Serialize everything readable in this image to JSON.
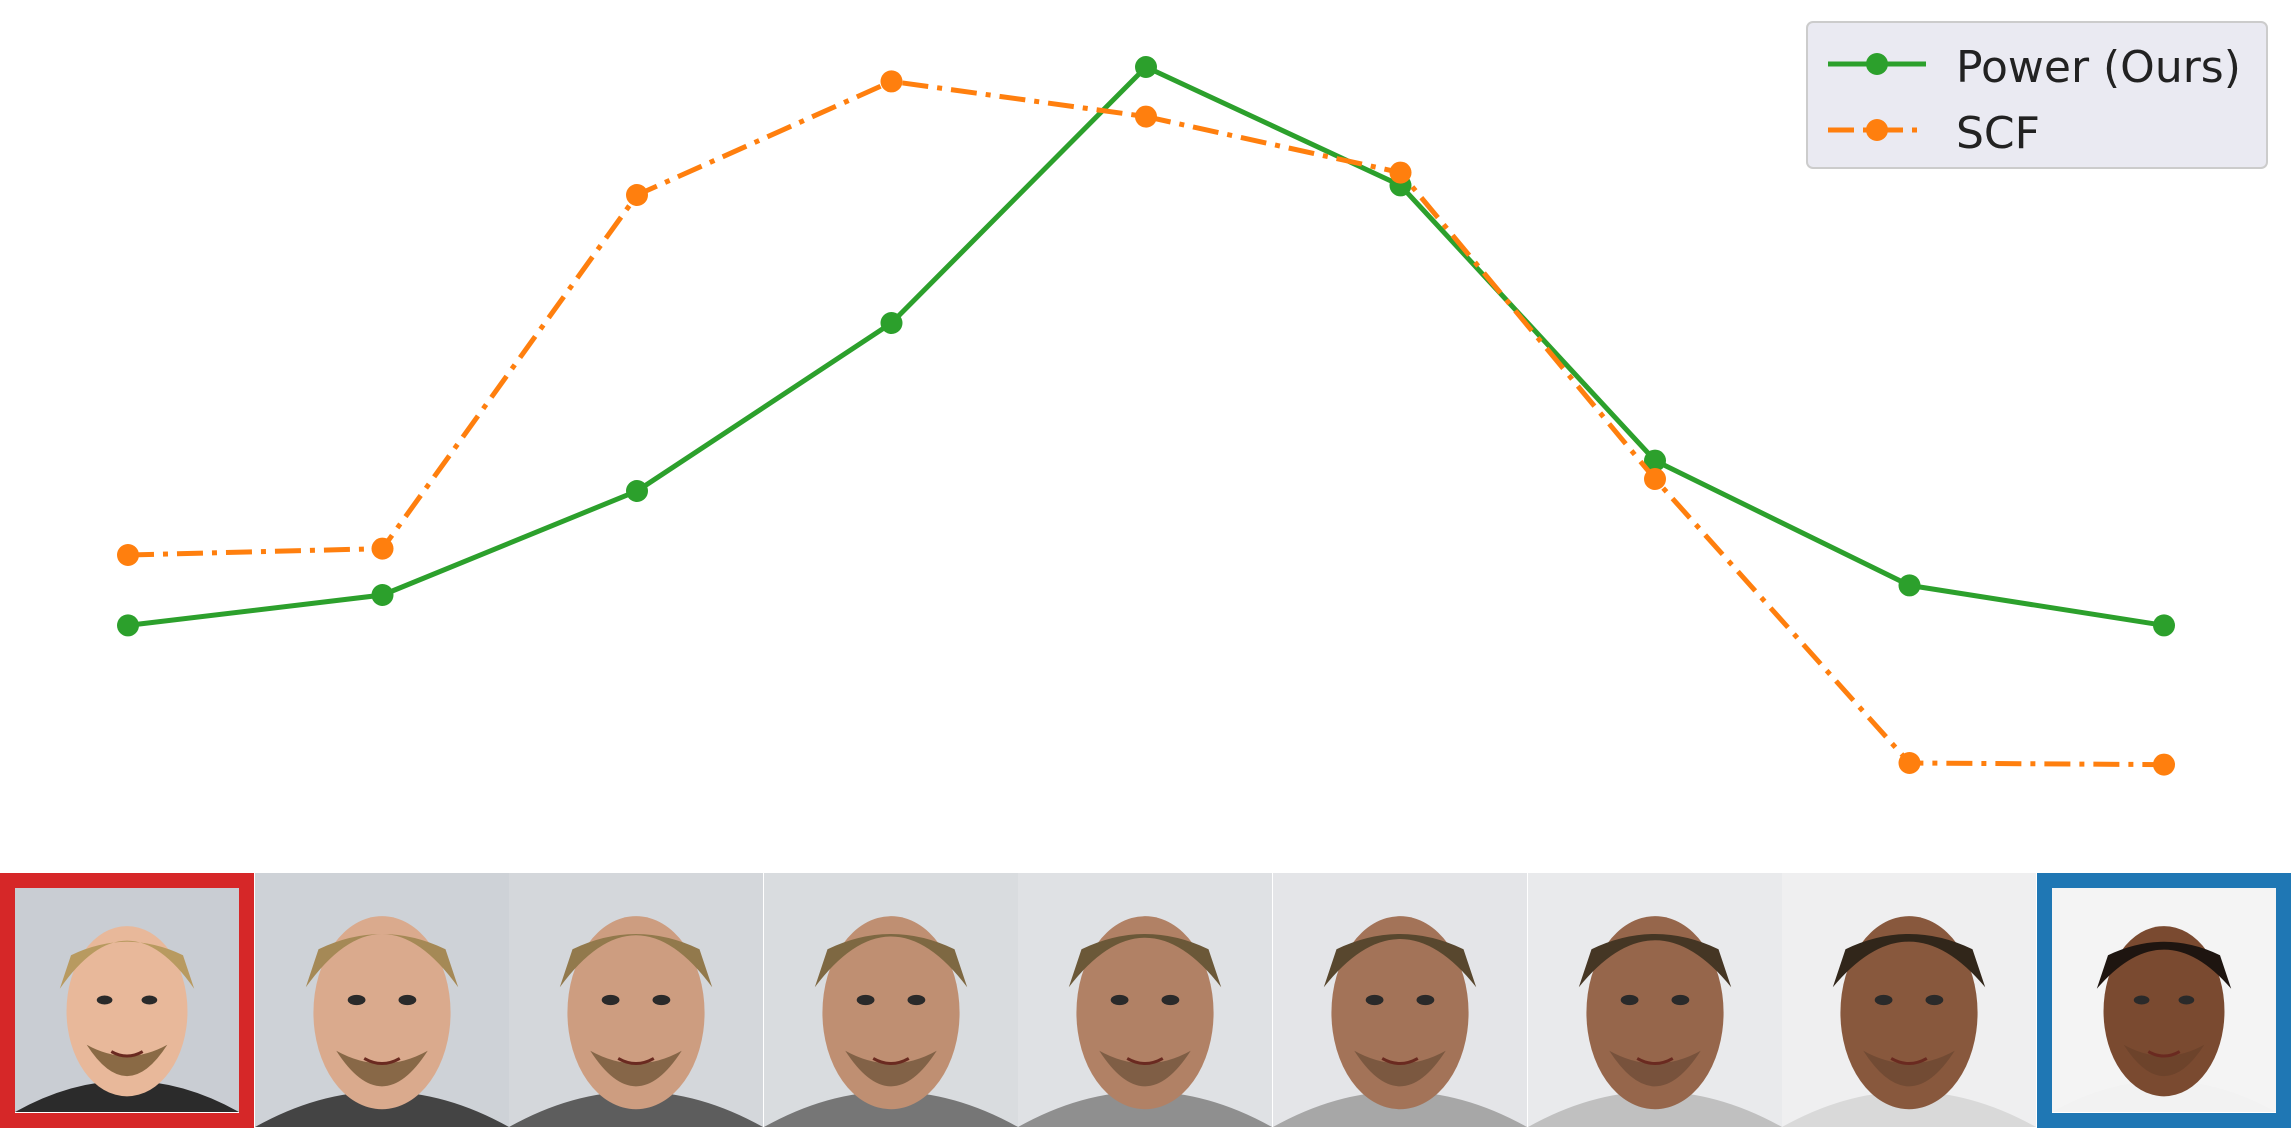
{
  "chart_data": {
    "type": "line",
    "title": "",
    "xlabel": "",
    "ylabel": "",
    "axes_visible": false,
    "grid": false,
    "legend_position": "top-right",
    "x": [
      1,
      2,
      3,
      4,
      5,
      6,
      7,
      8,
      9
    ],
    "series": [
      {
        "name": "Power (Ours)",
        "color": "#2ca02c",
        "line_style": "solid",
        "marker": "circle",
        "values": [
          0.262,
          0.3,
          0.43,
          0.64,
          0.96,
          0.812,
          0.468,
          0.312,
          0.262
        ]
      },
      {
        "name": "SCF",
        "color": "#ff7f0e",
        "line_style": "dash-dot",
        "marker": "circle",
        "values": [
          0.35,
          0.358,
          0.8,
          0.942,
          0.898,
          0.828,
          0.445,
          0.09,
          0.088
        ]
      }
    ]
  },
  "image_strip": {
    "description_frames": 9,
    "source_frame_color": "#d62728",
    "target_frame_color": "#1f77b4",
    "frames": [
      {
        "role": "source",
        "icon": "face-source-thumbnail"
      },
      {
        "role": "interpolation",
        "icon": "face-interp-thumbnail"
      },
      {
        "role": "interpolation",
        "icon": "face-interp-thumbnail"
      },
      {
        "role": "interpolation",
        "icon": "face-interp-thumbnail"
      },
      {
        "role": "interpolation",
        "icon": "face-interp-thumbnail"
      },
      {
        "role": "interpolation",
        "icon": "face-interp-thumbnail"
      },
      {
        "role": "interpolation",
        "icon": "face-interp-thumbnail"
      },
      {
        "role": "interpolation",
        "icon": "face-interp-thumbnail"
      },
      {
        "role": "target",
        "icon": "face-target-thumbnail"
      }
    ]
  }
}
